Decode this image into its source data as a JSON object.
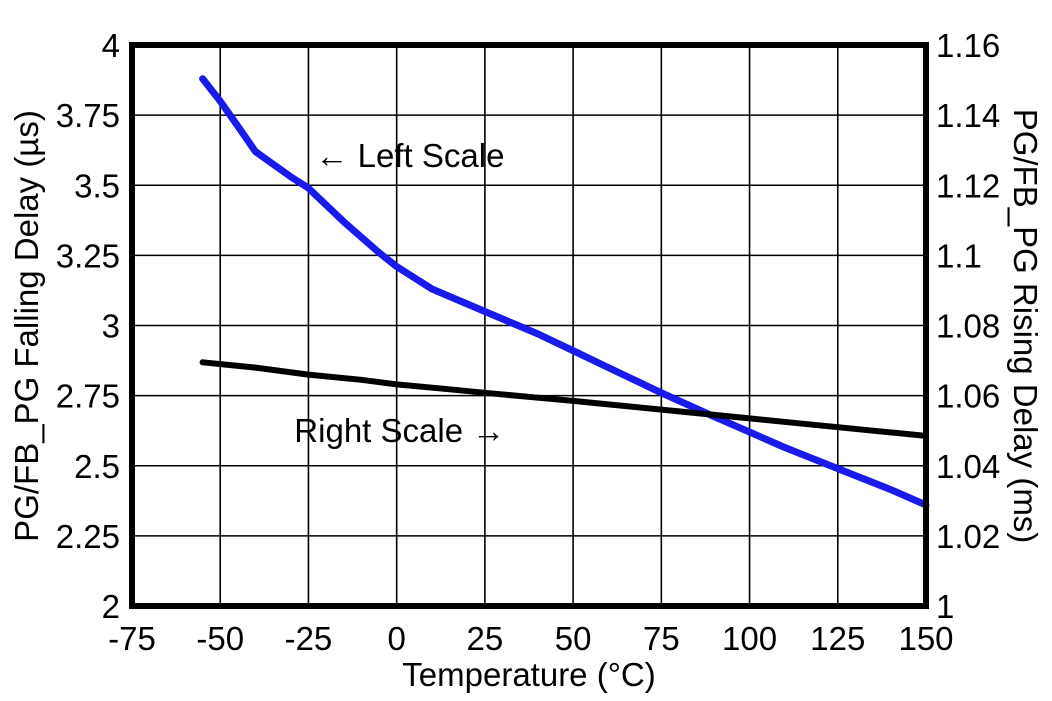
{
  "figure": {
    "background": "#ffffff",
    "grid_color": "#000000",
    "border_color": "#000000"
  },
  "chart_data": {
    "type": "line",
    "title": "",
    "xlabel": "Temperature (°C)",
    "ylabel_left": "PG/FB_PG Falling Delay (µs)",
    "ylabel_right": "PG/FB_PG Rising Delay (ms)",
    "xlim": [
      -75,
      150
    ],
    "ylim_left": [
      2,
      4
    ],
    "ylim_right": [
      1,
      1.16
    ],
    "x_ticks": [
      "-75",
      "-50",
      "-25",
      "0",
      "25",
      "50",
      "75",
      "100",
      "125",
      "150"
    ],
    "y_ticks_left": [
      "4",
      "3.75",
      "3.5",
      "3.25",
      "3",
      "2.75",
      "2.5",
      "2.25",
      "2"
    ],
    "y_ticks_right": [
      "1.16",
      "1.14",
      "1.12",
      "1.1",
      "1.08",
      "1.06",
      "1.04",
      "1.02",
      "1"
    ],
    "grid": true,
    "legend_position": "none",
    "annotations": [
      {
        "text": "← Left Scale",
        "x": -23,
        "y": 3.565,
        "axis": "left"
      },
      {
        "text": "Right Scale →",
        "x": -29,
        "y": 2.585,
        "axis": "left"
      }
    ],
    "series": [
      {
        "name": "Left Scale",
        "axis": "left",
        "color": "#1a1aeb",
        "width": 7,
        "points": [
          [
            -55,
            3.88
          ],
          [
            -50,
            3.8
          ],
          [
            -45,
            3.71
          ],
          [
            -40,
            3.62
          ],
          [
            -30,
            3.53
          ],
          [
            -25,
            3.49
          ],
          [
            -15,
            3.37
          ],
          [
            -5,
            3.26
          ],
          [
            0,
            3.21
          ],
          [
            10,
            3.13
          ],
          [
            25,
            3.05
          ],
          [
            40,
            2.97
          ],
          [
            50,
            2.91
          ],
          [
            60,
            2.85
          ],
          [
            75,
            2.76
          ],
          [
            90,
            2.675
          ],
          [
            100,
            2.62
          ],
          [
            110,
            2.565
          ],
          [
            125,
            2.49
          ],
          [
            140,
            2.415
          ],
          [
            150,
            2.36
          ]
        ]
      },
      {
        "name": "Right Scale",
        "axis": "right",
        "color": "#000000",
        "width": 6,
        "points": [
          [
            -55,
            1.0695
          ],
          [
            -40,
            1.068
          ],
          [
            -25,
            1.066
          ],
          [
            -10,
            1.0645
          ],
          [
            0,
            1.0632
          ],
          [
            15,
            1.0618
          ],
          [
            25,
            1.0608
          ],
          [
            40,
            1.0594
          ],
          [
            50,
            1.0585
          ],
          [
            65,
            1.057
          ],
          [
            75,
            1.056
          ],
          [
            90,
            1.0545
          ],
          [
            100,
            1.0535
          ],
          [
            115,
            1.052
          ],
          [
            125,
            1.051
          ],
          [
            140,
            1.0495
          ],
          [
            150,
            1.0485
          ]
        ]
      }
    ]
  }
}
